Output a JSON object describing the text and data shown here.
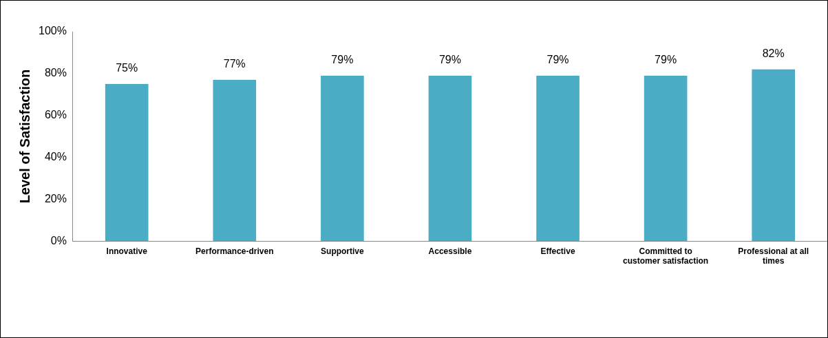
{
  "chart_data": {
    "type": "bar",
    "ylabel": "Level of Satisfaction",
    "categories": [
      "Innovative",
      "Performance-driven",
      "Supportive",
      "Accessible",
      "Effective",
      "Committed to customer satisfaction",
      "Professional at all times"
    ],
    "values": [
      75,
      77,
      79,
      79,
      79,
      79,
      82
    ],
    "value_labels": [
      "75%",
      "77%",
      "79%",
      "79%",
      "79%",
      "79%",
      "82%"
    ],
    "color": "#4bacc6",
    "ylim": [
      0,
      100
    ],
    "yticks": [
      {
        "value": 0,
        "label": "0%"
      },
      {
        "value": 20,
        "label": "20%"
      },
      {
        "value": 40,
        "label": "40%"
      },
      {
        "value": 60,
        "label": "60%"
      },
      {
        "value": 80,
        "label": "80%"
      },
      {
        "value": 100,
        "label": "100%"
      }
    ],
    "grid": false,
    "legend": false
  }
}
